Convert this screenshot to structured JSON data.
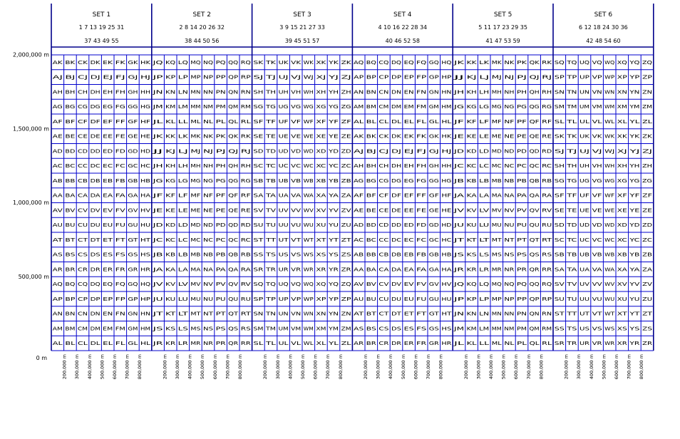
{
  "sets": [
    {
      "title": "SET 1",
      "zones_line1": "1 7 13 19 25 31",
      "zones_line2": "37 43 49 55"
    },
    {
      "title": "SET 2",
      "zones_line1": "2 8 14 20 26 32",
      "zones_line2": "38 44 50 56"
    },
    {
      "title": "SET 3",
      "zones_line1": "3 9 15 21 27 33",
      "zones_line2": "39 45 51 57"
    },
    {
      "title": "SET 4",
      "zones_line1": "4 10 16 22 28 34",
      "zones_line2": "40 46 52 58"
    },
    {
      "title": "SET 5",
      "zones_line1": "5 11 17 23 29 35",
      "zones_line2": "41 47 53 59"
    },
    {
      "title": "SET 6",
      "zones_line1": "6 12 18 24 30 36",
      "zones_line2": "42 48 54 60"
    }
  ],
  "column_letters": [
    [
      "A",
      "B",
      "C",
      "D",
      "E",
      "F",
      "G",
      "H"
    ],
    [
      "J",
      "K",
      "L",
      "M",
      "N",
      "P",
      "Q",
      "R"
    ],
    [
      "S",
      "T",
      "U",
      "V",
      "W",
      "X",
      "Y",
      "Z"
    ],
    [
      "A",
      "B",
      "C",
      "D",
      "E",
      "F",
      "G",
      "H"
    ],
    [
      "J",
      "K",
      "L",
      "M",
      "N",
      "P",
      "Q",
      "R"
    ],
    [
      "S",
      "T",
      "U",
      "V",
      "W",
      "X",
      "Y",
      "Z"
    ]
  ],
  "row_letters_odd_sets": [
    "K",
    "J",
    "H",
    "G",
    "F",
    "E",
    "D",
    "C",
    "B",
    "A",
    "V",
    "U",
    "T",
    "S",
    "R",
    "Q",
    "P",
    "N",
    "M",
    "L"
  ],
  "row_letters_even_sets": [
    "Q",
    "P",
    "N",
    "M",
    "L",
    "K",
    "J",
    "H",
    "G",
    "F",
    "E",
    "D",
    "C",
    "B",
    "A",
    "V",
    "U",
    "T",
    "S",
    "R"
  ],
  "y_axis_labels": [
    "2,000,000 m",
    "1,500,000 m",
    "1,000,000 m",
    "500,000 m",
    "0 m"
  ],
  "x_axis_labels": [
    "200,000 m",
    "300,000 m",
    "400,000 m",
    "500,000 m",
    "600,000 m",
    "700,000 m",
    "800,000 m"
  ],
  "colors": {
    "grid": "#0000cc",
    "divider": "#00008b",
    "text": "#000000",
    "background": "#ffffff"
  }
}
